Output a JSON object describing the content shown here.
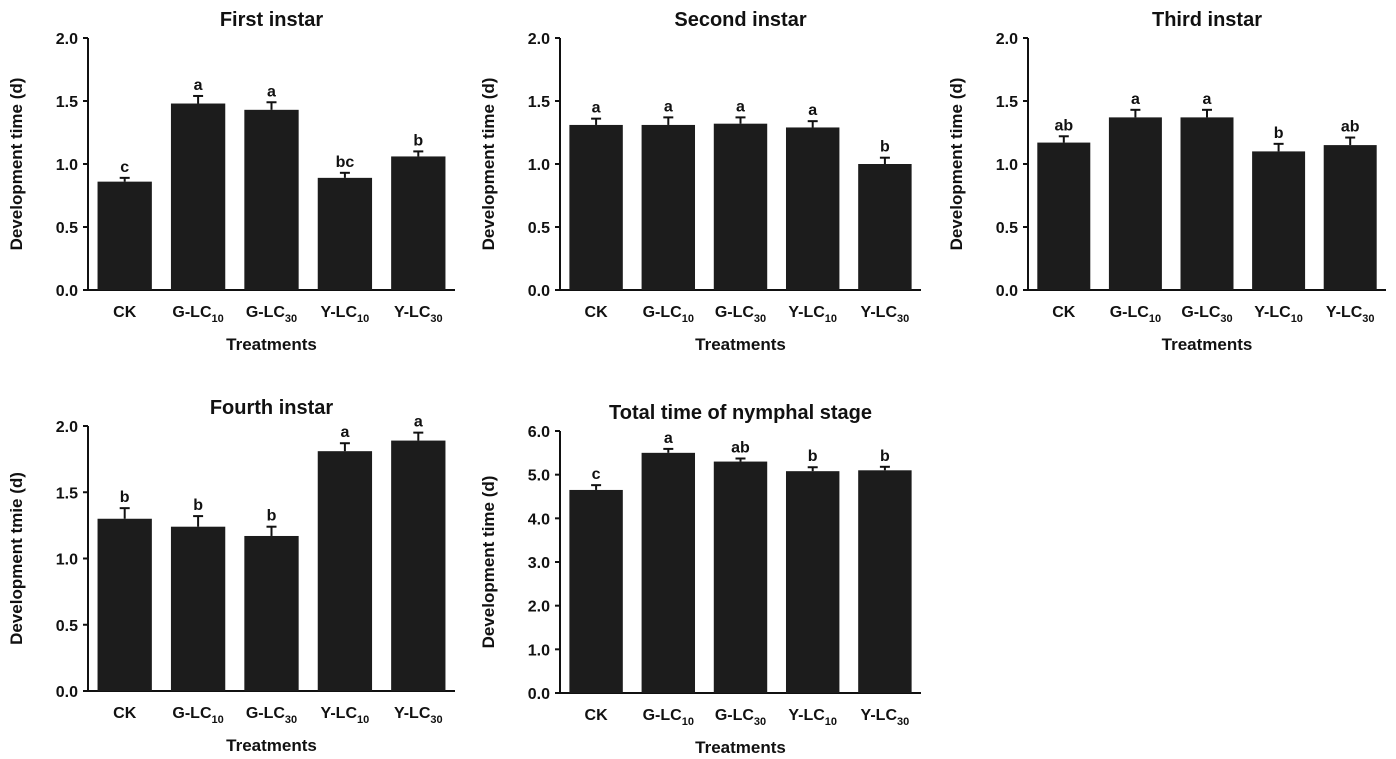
{
  "colors": {
    "bar": "#1c1c1c",
    "axis": "#111111",
    "text": "#111111",
    "background": "#ffffff"
  },
  "chart_data": [
    {
      "type": "bar",
      "title": "First instar",
      "xlabel": "Treatments",
      "ylabel": "Development time (d)",
      "ylim": [
        0,
        2.0
      ],
      "yticks": [
        "0.0",
        "0.5",
        "1.0",
        "1.5",
        "2.0"
      ],
      "categories": [
        {
          "base": "CK",
          "sub": ""
        },
        {
          "base": "G-LC",
          "sub": "10"
        },
        {
          "base": "G-LC",
          "sub": "30"
        },
        {
          "base": "Y-LC",
          "sub": "10"
        },
        {
          "base": "Y-LC",
          "sub": "30"
        }
      ],
      "values": [
        0.86,
        1.48,
        1.43,
        0.89,
        1.06
      ],
      "errors": [
        0.03,
        0.06,
        0.06,
        0.04,
        0.04
      ],
      "significance": [
        "c",
        "a",
        "a",
        "bc",
        "b"
      ]
    },
    {
      "type": "bar",
      "title": "Second instar",
      "xlabel": "Treatments",
      "ylabel": "Development time (d)",
      "ylim": [
        0,
        2.0
      ],
      "yticks": [
        "0.0",
        "0.5",
        "1.0",
        "1.5",
        "2.0"
      ],
      "categories": [
        {
          "base": "CK",
          "sub": ""
        },
        {
          "base": "G-LC",
          "sub": "10"
        },
        {
          "base": "G-LC",
          "sub": "30"
        },
        {
          "base": "Y-LC",
          "sub": "10"
        },
        {
          "base": "Y-LC",
          "sub": "30"
        }
      ],
      "values": [
        1.31,
        1.31,
        1.32,
        1.29,
        1.0
      ],
      "errors": [
        0.05,
        0.06,
        0.05,
        0.05,
        0.05
      ],
      "significance": [
        "a",
        "a",
        "a",
        "a",
        "b"
      ]
    },
    {
      "type": "bar",
      "title": "Third instar",
      "xlabel": "Treatments",
      "ylabel": "Development time (d)",
      "ylim": [
        0,
        2.0
      ],
      "yticks": [
        "0.0",
        "0.5",
        "1.0",
        "1.5",
        "2.0"
      ],
      "categories": [
        {
          "base": "CK",
          "sub": ""
        },
        {
          "base": "G-LC",
          "sub": "10"
        },
        {
          "base": "G-LC",
          "sub": "30"
        },
        {
          "base": "Y-LC",
          "sub": "10"
        },
        {
          "base": "Y-LC",
          "sub": "30"
        }
      ],
      "values": [
        1.17,
        1.37,
        1.37,
        1.1,
        1.15
      ],
      "errors": [
        0.05,
        0.06,
        0.06,
        0.06,
        0.06
      ],
      "significance": [
        "ab",
        "a",
        "a",
        "b",
        "ab"
      ]
    },
    {
      "type": "bar",
      "title": "Fourth instar",
      "xlabel": "Treatments",
      "ylabel": "Development tmie (d)",
      "ylim": [
        0,
        2.0
      ],
      "yticks": [
        "0.0",
        "0.5",
        "1.0",
        "1.5",
        "2.0"
      ],
      "categories": [
        {
          "base": "CK",
          "sub": ""
        },
        {
          "base": "G-LC",
          "sub": "10"
        },
        {
          "base": "G-LC",
          "sub": "30"
        },
        {
          "base": "Y-LC",
          "sub": "10"
        },
        {
          "base": "Y-LC",
          "sub": "30"
        }
      ],
      "values": [
        1.3,
        1.24,
        1.17,
        1.81,
        1.89
      ],
      "errors": [
        0.08,
        0.08,
        0.07,
        0.06,
        0.06
      ],
      "significance": [
        "b",
        "b",
        "b",
        "a",
        "a"
      ]
    },
    {
      "type": "bar",
      "title": "Total time of nymphal stage",
      "xlabel": "Treatments",
      "ylabel": "Development time (d)",
      "ylim": [
        0,
        6.0
      ],
      "yticks": [
        "0.0",
        "1.0",
        "2.0",
        "3.0",
        "4.0",
        "5.0",
        "6.0"
      ],
      "categories": [
        {
          "base": "CK",
          "sub": ""
        },
        {
          "base": "G-LC",
          "sub": "10"
        },
        {
          "base": "G-LC",
          "sub": "30"
        },
        {
          "base": "Y-LC",
          "sub": "10"
        },
        {
          "base": "Y-LC",
          "sub": "30"
        }
      ],
      "values": [
        4.65,
        5.5,
        5.3,
        5.08,
        5.1
      ],
      "errors": [
        0.11,
        0.09,
        0.07,
        0.09,
        0.08
      ],
      "significance": [
        "c",
        "a",
        "ab",
        "b",
        "b"
      ]
    }
  ]
}
